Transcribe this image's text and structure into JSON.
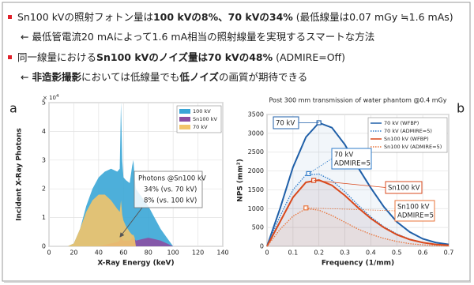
{
  "bullets": [
    {
      "marker": true,
      "segments": [
        {
          "text": "Sn100 kVの照射フォトン量は",
          "bold": false
        },
        {
          "text": "100 kVの8%、70 kVの34%",
          "bold": true
        },
        {
          "text": " (最低線量は0.07 mGy ≒1.6 mAs)",
          "bold": false
        }
      ]
    },
    {
      "marker": false,
      "segments": [
        {
          "text": "← 最低管電流20 mAによって1.6 mA相当の照射線量を実現するスマートな方法",
          "bold": false
        }
      ]
    },
    {
      "marker": true,
      "segments": [
        {
          "text": "同一線量における",
          "bold": false
        },
        {
          "text": "Sn100 kVのノイズ量は70 kVの48%",
          "bold": true
        },
        {
          "text": " (ADMIRE=Off)",
          "bold": false
        }
      ]
    },
    {
      "marker": false,
      "segments": [
        {
          "text": "← ",
          "bold": false
        },
        {
          "text": "非造影撮影",
          "bold": true
        },
        {
          "text": "においては低線量でも",
          "bold": false
        },
        {
          "text": "低ノイズ",
          "bold": true
        },
        {
          "text": "の画質が期待できる",
          "bold": false
        }
      ]
    }
  ],
  "chart_data": [
    {
      "type": "area",
      "panel_label": "a",
      "x_label": "X-Ray Energy (keV)",
      "y_label": "Incident X-Ray Photons",
      "y_multiplier": {
        "base": "× 10",
        "exponent": "4"
      },
      "xlim": [
        0,
        140
      ],
      "xticks": [
        0,
        20,
        40,
        60,
        80,
        100,
        120,
        140
      ],
      "ylim": [
        0,
        5
      ],
      "yticks": [
        0,
        1,
        2,
        3,
        4,
        5
      ],
      "grid": true,
      "legend": "top-right",
      "x": [
        15,
        20,
        25,
        30,
        35,
        40,
        45,
        50,
        55,
        57,
        58,
        59,
        60,
        62,
        65,
        67,
        68,
        69,
        70,
        75,
        80,
        85,
        90,
        95,
        100
      ],
      "series": [
        {
          "name": "100 kV",
          "color": "#3aa6d6",
          "values": [
            0,
            0.1,
            0.6,
            1.4,
            2.0,
            2.4,
            2.6,
            2.7,
            2.6,
            2.7,
            5.0,
            3.0,
            2.4,
            2.3,
            2.2,
            2.8,
            3.0,
            2.4,
            2.0,
            1.7,
            1.4,
            1.0,
            0.6,
            0.3,
            0
          ]
        },
        {
          "name": "Sn100 kV",
          "color": "#8b4fa3",
          "values": [
            0,
            0,
            0,
            0,
            0,
            0,
            0.05,
            0.1,
            0.15,
            0.2,
            0.45,
            0.25,
            0.2,
            0.2,
            0.2,
            0.3,
            0.35,
            0.25,
            0.2,
            0.25,
            0.3,
            0.25,
            0.2,
            0.1,
            0
          ]
        },
        {
          "name": "70 kV",
          "color": "#f2c46a",
          "values": [
            0,
            0.1,
            0.6,
            1.2,
            1.6,
            1.8,
            1.8,
            1.6,
            1.3,
            1.2,
            1.6,
            1.1,
            0.9,
            0.7,
            0.5,
            0.4,
            0.4,
            0.3,
            0,
            0,
            0,
            0,
            0,
            0,
            0
          ]
        }
      ],
      "annotation": [
        "Photons @Sn100 kV",
        "34% (vs. 70 kV)",
        "8% (vs. 100 kV)"
      ]
    },
    {
      "type": "line",
      "panel_label": "b",
      "title": "Post 300 mm transmission of water phantom @0.4 mGy",
      "x_label": "Frequency (1/mm)",
      "y_label": "NPS (mm²)",
      "xlim": [
        0,
        0.7
      ],
      "xticks": [
        0,
        0.1,
        0.2,
        0.3,
        0.4,
        0.5,
        0.6,
        0.7
      ],
      "ylim": [
        0,
        3500
      ],
      "yticks": [
        0,
        500,
        1000,
        1500,
        2000,
        2500,
        3000,
        3500
      ],
      "grid": true,
      "legend": "top-right",
      "x": [
        0,
        0.05,
        0.1,
        0.15,
        0.2,
        0.25,
        0.3,
        0.35,
        0.4,
        0.45,
        0.5,
        0.55,
        0.6,
        0.65,
        0.7
      ],
      "series": [
        {
          "name": "70 kV (WFBP)",
          "color": "#1f5fa8",
          "style": "solid",
          "values": [
            0,
            1000,
            2100,
            2900,
            3280,
            3150,
            2700,
            2100,
            1550,
            1050,
            650,
            380,
            200,
            100,
            50
          ],
          "peak": {
            "x": 0.2,
            "y": 3280
          }
        },
        {
          "name": "70 kV (ADMIRE=5)",
          "color": "#2e7bc9",
          "style": "dotted",
          "values": [
            0,
            800,
            1500,
            1900,
            1920,
            1750,
            1450,
            1100,
            780,
            520,
            330,
            190,
            100,
            50,
            25
          ],
          "peak": {
            "x": 0.16,
            "y": 1930
          }
        },
        {
          "name": "Sn100 kV (WFBP)",
          "color": "#d9481c",
          "style": "solid",
          "values": [
            0,
            650,
            1300,
            1700,
            1760,
            1620,
            1350,
            1030,
            740,
            500,
            310,
            180,
            100,
            50,
            25
          ],
          "peak": {
            "x": 0.18,
            "y": 1750
          }
        },
        {
          "name": "Sn100 kV (ADMIRE=5)",
          "color": "#e8733a",
          "style": "dotted",
          "values": [
            0,
            450,
            800,
            1000,
            960,
            820,
            640,
            460,
            320,
            210,
            130,
            70,
            40,
            20,
            10
          ],
          "peak": {
            "x": 0.15,
            "y": 1020
          }
        }
      ],
      "callouts": [
        {
          "lines": [
            "70 kV"
          ],
          "color": "#1f5fa8"
        },
        {
          "lines": [
            "70 kV",
            "ADMIRE=5"
          ],
          "color": "#2e7bc9"
        },
        {
          "lines": [
            "Sn100 kV"
          ],
          "color": "#d9481c"
        },
        {
          "lines": [
            "Sn100 kV",
            "ADMIRE=5"
          ],
          "color": "#e8733a"
        }
      ]
    }
  ]
}
